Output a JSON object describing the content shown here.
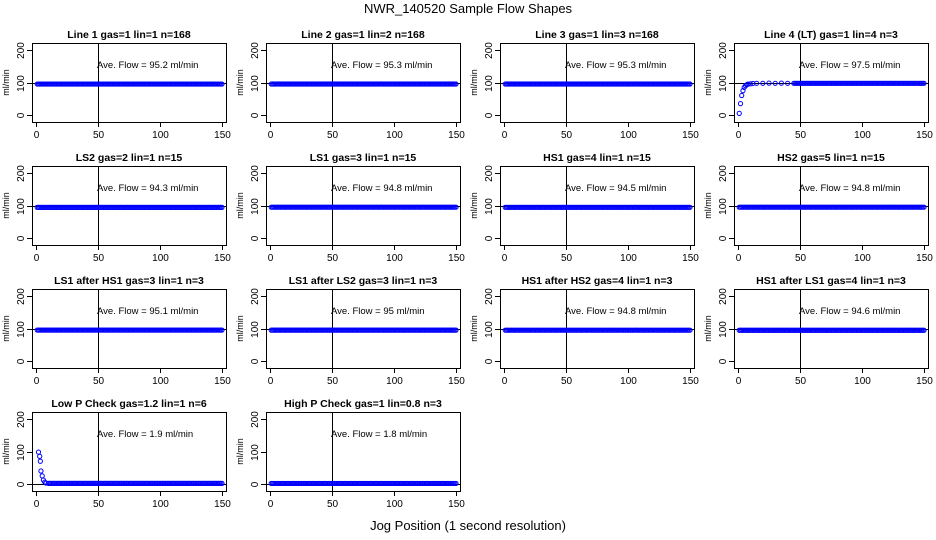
{
  "figure": {
    "title": "NWR_140520  Sample Flow Shapes",
    "xlabel": "Jog Position (1 second resolution)"
  },
  "colors": {
    "points": "#0000ff",
    "axes": "#000000",
    "background": "#ffffff"
  },
  "chart_data": [
    {
      "type": "scatter",
      "title": "Line 1 gas=1 lin=1 n=168",
      "ylabel": "ml/min",
      "annotation": "Ave. Flow = 95.2  ml/min",
      "xlim": [
        0,
        150
      ],
      "ylim": [
        0,
        200
      ],
      "xticks": [
        0,
        50,
        100,
        150
      ],
      "yticks": [
        0,
        100,
        200
      ],
      "ref_lines": {
        "x": 50,
        "y": 100
      },
      "shape": "flat",
      "steady_value": 95.2,
      "x_range": [
        1,
        150
      ]
    },
    {
      "type": "scatter",
      "title": "Line 2 gas=1 lin=2 n=168",
      "ylabel": "ml/min",
      "annotation": "Ave. Flow = 95.3  ml/min",
      "xlim": [
        0,
        150
      ],
      "ylim": [
        0,
        200
      ],
      "xticks": [
        0,
        50,
        100,
        150
      ],
      "yticks": [
        0,
        100,
        200
      ],
      "ref_lines": {
        "x": 50,
        "y": 100
      },
      "shape": "flat",
      "steady_value": 95.3,
      "x_range": [
        1,
        150
      ]
    },
    {
      "type": "scatter",
      "title": "Line 3 gas=1 lin=3 n=168",
      "ylabel": "ml/min",
      "annotation": "Ave. Flow = 95.3  ml/min",
      "xlim": [
        0,
        150
      ],
      "ylim": [
        0,
        200
      ],
      "xticks": [
        0,
        50,
        100,
        150
      ],
      "yticks": [
        0,
        100,
        200
      ],
      "ref_lines": {
        "x": 50,
        "y": 100
      },
      "shape": "flat",
      "steady_value": 95.3,
      "x_range": [
        1,
        150
      ]
    },
    {
      "type": "scatter",
      "title": "Line 4 (LT) gas=1 lin=4 n=3",
      "ylabel": "ml/min",
      "annotation": "Ave. Flow = 97.5  ml/min",
      "xlim": [
        0,
        150
      ],
      "ylim": [
        0,
        200
      ],
      "xticks": [
        0,
        50,
        100,
        150
      ],
      "yticks": [
        0,
        100,
        200
      ],
      "ref_lines": {
        "x": 50,
        "y": 100
      },
      "shape": "ramp-up",
      "steady_value": 97.5,
      "x_range": [
        1,
        150
      ],
      "initial_points": [
        [
          1,
          5
        ],
        [
          2,
          35
        ],
        [
          3,
          60
        ],
        [
          4,
          75
        ],
        [
          5,
          85
        ],
        [
          6,
          90
        ],
        [
          7,
          93
        ],
        [
          8,
          95
        ],
        [
          10,
          96
        ],
        [
          12,
          97
        ],
        [
          15,
          97.5
        ],
        [
          20,
          97.5
        ],
        [
          25,
          98
        ],
        [
          30,
          97.5
        ],
        [
          35,
          98
        ],
        [
          40,
          97.5
        ],
        [
          45,
          97.5
        ]
      ]
    },
    {
      "type": "scatter",
      "title": "LS2 gas=2 lin=1 n=15",
      "ylabel": "ml/min",
      "annotation": "Ave. Flow = 94.3  ml/min",
      "xlim": [
        0,
        150
      ],
      "ylim": [
        0,
        200
      ],
      "xticks": [
        0,
        50,
        100,
        150
      ],
      "yticks": [
        0,
        100,
        200
      ],
      "ref_lines": {
        "x": 50,
        "y": 100
      },
      "shape": "flat",
      "steady_value": 94.3,
      "x_range": [
        1,
        150
      ]
    },
    {
      "type": "scatter",
      "title": "LS1 gas=3 lin=1 n=15",
      "ylabel": "ml/min",
      "annotation": "Ave. Flow = 94.8  ml/min",
      "xlim": [
        0,
        150
      ],
      "ylim": [
        0,
        200
      ],
      "xticks": [
        0,
        50,
        100,
        150
      ],
      "yticks": [
        0,
        100,
        200
      ],
      "ref_lines": {
        "x": 50,
        "y": 100
      },
      "shape": "flat",
      "steady_value": 94.8,
      "x_range": [
        1,
        150
      ]
    },
    {
      "type": "scatter",
      "title": "HS1 gas=4 lin=1 n=15",
      "ylabel": "ml/min",
      "annotation": "Ave. Flow = 94.5  ml/min",
      "xlim": [
        0,
        150
      ],
      "ylim": [
        0,
        200
      ],
      "xticks": [
        0,
        50,
        100,
        150
      ],
      "yticks": [
        0,
        100,
        200
      ],
      "ref_lines": {
        "x": 50,
        "y": 100
      },
      "shape": "flat",
      "steady_value": 94.5,
      "x_range": [
        1,
        150
      ]
    },
    {
      "type": "scatter",
      "title": "HS2 gas=5 lin=1 n=15",
      "ylabel": "ml/min",
      "annotation": "Ave. Flow = 94.8  ml/min",
      "xlim": [
        0,
        150
      ],
      "ylim": [
        0,
        200
      ],
      "xticks": [
        0,
        50,
        100,
        150
      ],
      "yticks": [
        0,
        100,
        200
      ],
      "ref_lines": {
        "x": 50,
        "y": 100
      },
      "shape": "flat",
      "steady_value": 94.8,
      "x_range": [
        1,
        150
      ]
    },
    {
      "type": "scatter",
      "title": "LS1 after HS1 gas=3 lin=1 n=3",
      "ylabel": "ml/min",
      "annotation": "Ave. Flow = 95.1  ml/min",
      "xlim": [
        0,
        150
      ],
      "ylim": [
        0,
        200
      ],
      "xticks": [
        0,
        50,
        100,
        150
      ],
      "yticks": [
        0,
        100,
        200
      ],
      "ref_lines": {
        "x": 50,
        "y": 100
      },
      "shape": "flat",
      "steady_value": 95.1,
      "x_range": [
        1,
        150
      ]
    },
    {
      "type": "scatter",
      "title": "LS1 after LS2 gas=3 lin=1 n=3",
      "ylabel": "ml/min",
      "annotation": "Ave. Flow = 95  ml/min",
      "xlim": [
        0,
        150
      ],
      "ylim": [
        0,
        200
      ],
      "xticks": [
        0,
        50,
        100,
        150
      ],
      "yticks": [
        0,
        100,
        200
      ],
      "ref_lines": {
        "x": 50,
        "y": 100
      },
      "shape": "flat",
      "steady_value": 95,
      "x_range": [
        1,
        150
      ]
    },
    {
      "type": "scatter",
      "title": "HS1 after HS2 gas=4 lin=1 n=3",
      "ylabel": "ml/min",
      "annotation": "Ave. Flow = 94.8  ml/min",
      "xlim": [
        0,
        150
      ],
      "ylim": [
        0,
        200
      ],
      "xticks": [
        0,
        50,
        100,
        150
      ],
      "yticks": [
        0,
        100,
        200
      ],
      "ref_lines": {
        "x": 50,
        "y": 100
      },
      "shape": "flat",
      "steady_value": 94.8,
      "x_range": [
        1,
        150
      ]
    },
    {
      "type": "scatter",
      "title": "HS1 after LS1 gas=4 lin=1 n=3",
      "ylabel": "ml/min",
      "annotation": "Ave. Flow = 94.6  ml/min",
      "xlim": [
        0,
        150
      ],
      "ylim": [
        0,
        200
      ],
      "xticks": [
        0,
        50,
        100,
        150
      ],
      "yticks": [
        0,
        100,
        200
      ],
      "ref_lines": {
        "x": 50,
        "y": 100
      },
      "shape": "flat",
      "steady_value": 94.6,
      "x_range": [
        1,
        150
      ]
    },
    {
      "type": "scatter",
      "title": "Low P Check gas=1.2 lin=1 n=6",
      "ylabel": "ml/min",
      "annotation": "Ave. Flow = 1.9  ml/min",
      "xlim": [
        0,
        150
      ],
      "ylim": [
        0,
        200
      ],
      "xticks": [
        0,
        50,
        100,
        150
      ],
      "yticks": [
        0,
        100,
        200
      ],
      "ref_lines": {
        "x": 50,
        "y": 0
      },
      "shape": "decay",
      "steady_value": 1.9,
      "x_range": [
        1,
        150
      ],
      "initial_points": [
        [
          2,
          98
        ],
        [
          3,
          85
        ],
        [
          3.5,
          70
        ],
        [
          4,
          40
        ],
        [
          5,
          25
        ],
        [
          6,
          12
        ],
        [
          7,
          6
        ],
        [
          8,
          3
        ],
        [
          10,
          2
        ]
      ]
    },
    {
      "type": "scatter",
      "title": "High P Check gas=1 lin=0.8 n=3",
      "ylabel": "ml/min",
      "annotation": "Ave. Flow = 1.8  ml/min",
      "xlim": [
        0,
        150
      ],
      "ylim": [
        0,
        200
      ],
      "xticks": [
        0,
        50,
        100,
        150
      ],
      "yticks": [
        0,
        100,
        200
      ],
      "ref_lines": {
        "x": 50,
        "y": 0
      },
      "shape": "flat",
      "steady_value": 1.8,
      "x_range": [
        1,
        150
      ]
    }
  ]
}
